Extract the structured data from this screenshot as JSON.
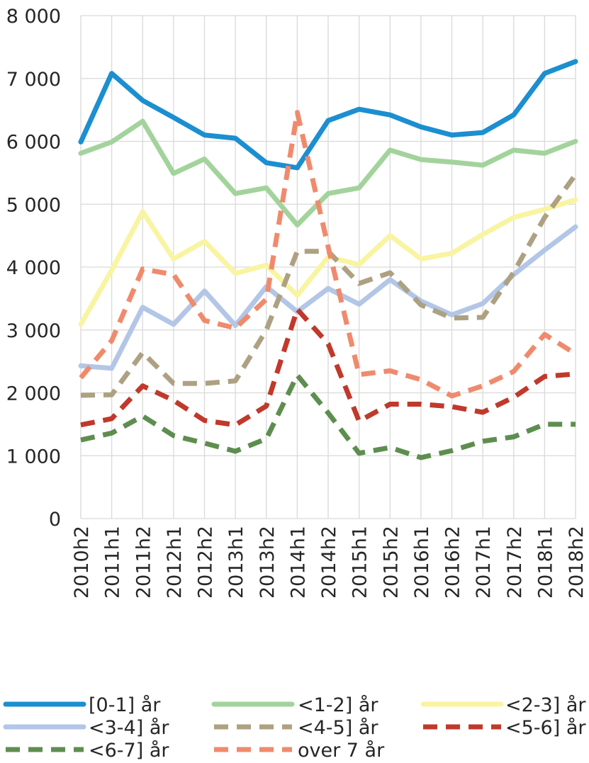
{
  "chart_data": {
    "type": "line",
    "title": "",
    "xlabel": "",
    "ylabel": "",
    "ylim": [
      0,
      8000
    ],
    "yticks": [
      0,
      1000,
      2000,
      3000,
      4000,
      5000,
      6000,
      7000,
      8000
    ],
    "ytick_labels": [
      "0",
      "1 000",
      "2 000",
      "3 000",
      "4 000",
      "5 000",
      "6 000",
      "7 000",
      "8 000"
    ],
    "grid": "vertical and horizontal",
    "legend_position": "bottom",
    "categories": [
      "2010h2",
      "2011h1",
      "2011h2",
      "2012h1",
      "2012h2",
      "2013h1",
      "2013h2",
      "2014h1",
      "2014h2",
      "2015h1",
      "2015h2",
      "2016h1",
      "2016h2",
      "2017h1",
      "2017h2",
      "2018h1",
      "2018h2"
    ],
    "series": [
      {
        "name": "[0-1] år",
        "color": "#1b8fd0",
        "style": "solid",
        "values": [
          5990,
          7080,
          6650,
          6380,
          6100,
          6050,
          5660,
          5580,
          6330,
          6510,
          6420,
          6230,
          6100,
          6140,
          6420,
          7080,
          7270
        ]
      },
      {
        "name": "<1-2] år",
        "color": "#a3d39c",
        "style": "solid",
        "values": [
          5810,
          5990,
          6320,
          5490,
          5720,
          5170,
          5260,
          4670,
          5170,
          5260,
          5860,
          5710,
          5670,
          5620,
          5860,
          5810,
          6000
        ]
      },
      {
        "name": "<2-3] år",
        "color": "#f9f4a1",
        "style": "solid",
        "values": [
          3090,
          3950,
          4880,
          4130,
          4410,
          3900,
          4030,
          3550,
          4160,
          4040,
          4500,
          4130,
          4220,
          4520,
          4790,
          4920,
          5070
        ]
      },
      {
        "name": "<3-4] år",
        "color": "#b3c6e7",
        "style": "solid",
        "values": [
          2430,
          2390,
          3360,
          3090,
          3620,
          3070,
          3690,
          3290,
          3660,
          3410,
          3800,
          3460,
          3240,
          3420,
          3880,
          4270,
          4640
        ]
      },
      {
        "name": "<4-5] år",
        "color": "#aea182",
        "style": "dashed",
        "values": [
          1960,
          1970,
          2640,
          2150,
          2150,
          2190,
          3000,
          4250,
          4250,
          3740,
          3910,
          3400,
          3190,
          3200,
          3920,
          4790,
          5470
        ]
      },
      {
        "name": "<5-6] år",
        "color": "#c0392b",
        "style": "dashed",
        "values": [
          1490,
          1590,
          2110,
          1880,
          1560,
          1490,
          1790,
          3330,
          2780,
          1550,
          1820,
          1820,
          1780,
          1690,
          1930,
          2260,
          2300
        ]
      },
      {
        "name": "<6-7] år",
        "color": "#5e8e4f",
        "style": "dashed",
        "values": [
          1250,
          1360,
          1630,
          1320,
          1200,
          1070,
          1270,
          2280,
          1680,
          1040,
          1130,
          970,
          1080,
          1230,
          1300,
          1500,
          1500
        ]
      },
      {
        "name": "over 7 år",
        "color": "#f08a6d",
        "style": "dashed",
        "values": [
          2240,
          2830,
          3970,
          3880,
          3150,
          3030,
          3490,
          6460,
          4320,
          2290,
          2350,
          2210,
          1950,
          2110,
          2340,
          2930,
          2620
        ]
      }
    ]
  }
}
